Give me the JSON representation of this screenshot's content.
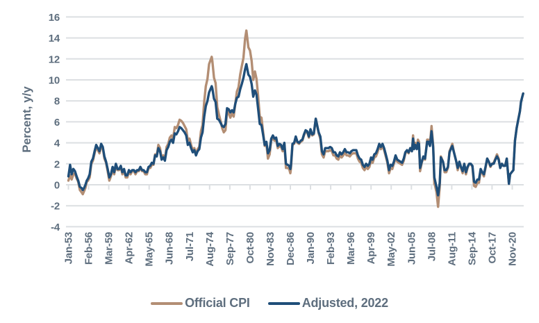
{
  "chart_data": {
    "type": "line",
    "title": "",
    "ylabel": "Percent, y/y",
    "xlabel": "",
    "ylim": [
      -4,
      16
    ],
    "y_ticks": [
      16,
      14,
      12,
      10,
      8,
      6,
      4,
      2,
      0,
      "-2",
      "-4"
    ],
    "y_tick_values": [
      16,
      14,
      12,
      10,
      8,
      6,
      4,
      2,
      0,
      -2,
      -4
    ],
    "x_tick_labels": [
      "Jan-53",
      "Feb-56",
      "Mar-59",
      "Apr-62",
      "May-65",
      "Jun-68",
      "Jul-71",
      "Aug-74",
      "Sep-77",
      "Oct-80",
      "Nov-83",
      "Dec-86",
      "Jan-90",
      "Feb-93",
      "Mar-96",
      "Apr-99",
      "May-02",
      "Jun-05",
      "Jul-08",
      "Aug-11",
      "Sep-14",
      "Oct-17",
      "Nov-20"
    ],
    "x_tick_interval_months": 37,
    "x_range_years": [
      1953.0,
      2022.5
    ],
    "grid": "horizontal-only",
    "legend_position": "bottom-center",
    "axis_text_color": "#5e6e7e",
    "grid_color": "#dcdfe2",
    "series": [
      {
        "name": "Official CPI",
        "color": "#b38e74"
      },
      {
        "name": "Adjusted, 2022",
        "color": "#1f4e79"
      }
    ],
    "columns": [
      "year",
      "official_cpi_yoy_pct",
      "adjusted_2022_yoy_pct"
    ],
    "points": [
      [
        1953,
        0.4,
        0.8
      ],
      [
        1953.25,
        0.9,
        1.9
      ],
      [
        1953.5,
        0.5,
        1
      ],
      [
        1953.75,
        1,
        1.5
      ],
      [
        1954,
        1.1,
        1.3
      ],
      [
        1954.25,
        0.6,
        0.8
      ],
      [
        1954.5,
        0.3,
        0.4
      ],
      [
        1954.75,
        -0.5,
        -0.2
      ],
      [
        1955,
        -0.7,
        -0.3
      ],
      [
        1955.2,
        -0.9,
        -0.5
      ],
      [
        1955.4,
        -0.6,
        -0.3
      ],
      [
        1955.6,
        -0.3,
        0
      ],
      [
        1955.8,
        0.3,
        0.4
      ],
      [
        1956,
        0.4,
        0.6
      ],
      [
        1956.25,
        0.7,
        1
      ],
      [
        1956.5,
        2,
        2.2
      ],
      [
        1956.75,
        2.3,
        2.5
      ],
      [
        1957,
        3,
        3.2
      ],
      [
        1957.25,
        3.6,
        3.8
      ],
      [
        1957.5,
        3.3,
        3.5
      ],
      [
        1957.75,
        3,
        3.2
      ],
      [
        1958,
        3.6,
        3.9
      ],
      [
        1958.25,
        3.5,
        3.6
      ],
      [
        1958.5,
        2.5,
        2.7
      ],
      [
        1958.75,
        2.1,
        2.2
      ],
      [
        1959,
        1.3,
        1.5
      ],
      [
        1959.25,
        0.4,
        0.7
      ],
      [
        1959.5,
        0.8,
        1
      ],
      [
        1959.75,
        1.5,
        1.7
      ],
      [
        1960,
        1,
        1.2
      ],
      [
        1960.25,
        1.8,
        2
      ],
      [
        1960.5,
        1.4,
        1.5
      ],
      [
        1960.75,
        1.4,
        1.5
      ],
      [
        1961,
        1.7,
        1.8
      ],
      [
        1961.25,
        1,
        1.2
      ],
      [
        1961.5,
        1.4,
        1.5
      ],
      [
        1961.75,
        0.7,
        0.9
      ],
      [
        1962,
        0.7,
        0.9
      ],
      [
        1962.25,
        1.3,
        1.4
      ],
      [
        1962.5,
        1,
        1.2
      ],
      [
        1962.75,
        1.3,
        1.4
      ],
      [
        1963,
        1.3,
        1.4
      ],
      [
        1963.25,
        1,
        1.2
      ],
      [
        1963.5,
        1.3,
        1.4
      ],
      [
        1963.75,
        1.3,
        1.4
      ],
      [
        1964,
        1.6,
        1.7
      ],
      [
        1964.25,
        1.3,
        1.4
      ],
      [
        1964.5,
        1.3,
        1.4
      ],
      [
        1964.75,
        1,
        1.2
      ],
      [
        1965,
        1,
        1.2
      ],
      [
        1965.25,
        1.6,
        1.7
      ],
      [
        1965.5,
        1.6,
        1.8
      ],
      [
        1965.75,
        1.9,
        2.1
      ],
      [
        1966,
        1.9,
        2
      ],
      [
        1966.25,
        2.9,
        2.8
      ],
      [
        1966.5,
        2.8,
        2.7
      ],
      [
        1966.75,
        3.8,
        3.5
      ],
      [
        1967,
        3.5,
        3.2
      ],
      [
        1967.25,
        2.5,
        2.4
      ],
      [
        1967.5,
        2.8,
        2.6
      ],
      [
        1967.75,
        2.4,
        2.3
      ],
      [
        1968,
        3.6,
        3.3
      ],
      [
        1968.25,
        3.9,
        3.6
      ],
      [
        1968.5,
        4.5,
        4.1
      ],
      [
        1968.75,
        4.7,
        4.3
      ],
      [
        1969,
        4.4,
        4
      ],
      [
        1969.25,
        5.5,
        4.9
      ],
      [
        1969.5,
        5.4,
        4.8
      ],
      [
        1969.75,
        5.7,
        5.1
      ],
      [
        1970,
        6.2,
        5.5
      ],
      [
        1970.25,
        6.1,
        5.4
      ],
      [
        1970.5,
        5.9,
        5.2
      ],
      [
        1970.75,
        5.6,
        5
      ],
      [
        1971,
        5.3,
        4.7
      ],
      [
        1971.25,
        4.2,
        3.8
      ],
      [
        1971.5,
        4.4,
        4
      ],
      [
        1971.75,
        3.8,
        3.5
      ],
      [
        1972,
        3.3,
        3.1
      ],
      [
        1972.25,
        3.5,
        3.3
      ],
      [
        1972.5,
        2.9,
        2.8
      ],
      [
        1972.75,
        3.4,
        3.2
      ],
      [
        1973,
        3.6,
        3.4
      ],
      [
        1973.25,
        5.1,
        4.5
      ],
      [
        1973.5,
        5.7,
        5
      ],
      [
        1973.75,
        7.9,
        6.5
      ],
      [
        1974,
        9.4,
        7.5
      ],
      [
        1974.25,
        10.1,
        8
      ],
      [
        1974.5,
        11.5,
        8.8
      ],
      [
        1974.9,
        12.2,
        9.4
      ],
      [
        1975,
        11.8,
        9.2
      ],
      [
        1975.25,
        10.2,
        8.2
      ],
      [
        1975.5,
        9.7,
        7.9
      ],
      [
        1975.75,
        7.4,
        6.3
      ],
      [
        1976,
        6.7,
        6.2
      ],
      [
        1976.25,
        6.1,
        5.9
      ],
      [
        1976.5,
        5.4,
        5.6
      ],
      [
        1976.75,
        5,
        5.5
      ],
      [
        1977,
        5.2,
        5.8
      ],
      [
        1977.25,
        7,
        7.3
      ],
      [
        1977.5,
        6.8,
        7.2
      ],
      [
        1977.75,
        6.4,
        6.9
      ],
      [
        1978,
        6.8,
        7.1
      ],
      [
        1978.25,
        6.5,
        6.9
      ],
      [
        1978.5,
        7.7,
        7.7
      ],
      [
        1978.75,
        8.9,
        8.3
      ],
      [
        1979,
        9.3,
        8.4
      ],
      [
        1979.25,
        10.5,
        9.1
      ],
      [
        1979.5,
        11.3,
        9.6
      ],
      [
        1979.75,
        12.1,
        10.2
      ],
      [
        1980,
        13.9,
        11
      ],
      [
        1980.2,
        14.7,
        11.5
      ],
      [
        1980.5,
        13.1,
        10.5
      ],
      [
        1980.75,
        12.8,
        10.3
      ],
      [
        1981,
        11.8,
        9.6
      ],
      [
        1981.25,
        10,
        8.4
      ],
      [
        1981.5,
        10.8,
        9
      ],
      [
        1981.75,
        10.1,
        8.6
      ],
      [
        1982,
        8.4,
        7.2
      ],
      [
        1982.25,
        6.5,
        5.8
      ],
      [
        1982.5,
        6.4,
        5.7
      ],
      [
        1982.75,
        5.1,
        4.8
      ],
      [
        1983,
        3.7,
        3.8
      ],
      [
        1983.25,
        3.9,
        4.1
      ],
      [
        1983.5,
        2.5,
        3
      ],
      [
        1983.75,
        2.9,
        3.3
      ],
      [
        1984,
        4.2,
        4.4
      ],
      [
        1984.25,
        4.5,
        4.7
      ],
      [
        1984.5,
        4.2,
        4.4
      ],
      [
        1984.75,
        4.3,
        4.5
      ],
      [
        1985,
        3.5,
        3.7
      ],
      [
        1985.25,
        3.7,
        3.9
      ],
      [
        1985.5,
        3.6,
        3.8
      ],
      [
        1985.75,
        3.2,
        3.4
      ],
      [
        1986,
        3.9,
        4
      ],
      [
        1986.25,
        1.6,
        2
      ],
      [
        1986.5,
        1.6,
        1.9
      ],
      [
        1986.75,
        1.5,
        1.8
      ],
      [
        1986.92,
        1.1,
        1.5
      ],
      [
        1987,
        1.5,
        1.8
      ],
      [
        1987.25,
        3.8,
        3.9
      ],
      [
        1987.5,
        3.9,
        4
      ],
      [
        1987.75,
        4.5,
        4.6
      ],
      [
        1988,
        4,
        4.1
      ],
      [
        1988.25,
        3.9,
        4
      ],
      [
        1988.5,
        4.1,
        4.2
      ],
      [
        1988.75,
        4.2,
        4.3
      ],
      [
        1989,
        4.7,
        4.8
      ],
      [
        1989.25,
        5.1,
        5.2
      ],
      [
        1989.5,
        5,
        5.1
      ],
      [
        1989.75,
        4.5,
        4.6
      ],
      [
        1990,
        5.2,
        5.3
      ],
      [
        1990.25,
        4.7,
        4.8
      ],
      [
        1990.5,
        4.8,
        4.9
      ],
      [
        1990.8,
        6.3,
        6.3
      ],
      [
        1991,
        5.7,
        5.7
      ],
      [
        1991.25,
        4.9,
        5
      ],
      [
        1991.5,
        4.4,
        4.6
      ],
      [
        1991.75,
        2.9,
        3.2
      ],
      [
        1992,
        2.6,
        2.9
      ],
      [
        1992.25,
        3.2,
        3.5
      ],
      [
        1992.5,
        3.2,
        3.5
      ],
      [
        1992.75,
        3.2,
        3.5
      ],
      [
        1993,
        3.3,
        3.6
      ],
      [
        1993.25,
        3.2,
        3.5
      ],
      [
        1993.5,
        2.8,
        3.1
      ],
      [
        1993.75,
        2.8,
        3.1
      ],
      [
        1994,
        2.5,
        2.8
      ],
      [
        1994.25,
        2.4,
        2.7
      ],
      [
        1994.5,
        2.8,
        3.1
      ],
      [
        1994.75,
        2.6,
        2.9
      ],
      [
        1995,
        2.8,
        3.1
      ],
      [
        1995.25,
        3.1,
        3.4
      ],
      [
        1995.5,
        2.8,
        3.1
      ],
      [
        1995.75,
        2.8,
        3.1
      ],
      [
        1996,
        2.7,
        3
      ],
      [
        1996.25,
        2.9,
        3.2
      ],
      [
        1996.5,
        3,
        3.3
      ],
      [
        1996.75,
        3,
        3.3
      ],
      [
        1997,
        3,
        3.3
      ],
      [
        1997.25,
        2.5,
        2.8
      ],
      [
        1997.5,
        2.2,
        2.5
      ],
      [
        1997.75,
        2.1,
        2.4
      ],
      [
        1998,
        1.6,
        1.9
      ],
      [
        1998.25,
        1.4,
        1.7
      ],
      [
        1998.5,
        1.7,
        2
      ],
      [
        1998.75,
        1.5,
        1.8
      ],
      [
        1999,
        1.7,
        2
      ],
      [
        1999.25,
        2.3,
        2.6
      ],
      [
        1999.5,
        2.1,
        2.4
      ],
      [
        1999.75,
        2.6,
        2.9
      ],
      [
        2000,
        2.7,
        3
      ],
      [
        2000.25,
        3.1,
        3.4
      ],
      [
        2000.5,
        3.7,
        3.9
      ],
      [
        2000.75,
        3.4,
        3.6
      ],
      [
        2001,
        3.7,
        3.9
      ],
      [
        2001.25,
        3.3,
        3.5
      ],
      [
        2001.5,
        2.7,
        2.9
      ],
      [
        2001.75,
        2.1,
        2.3
      ],
      [
        2002,
        1.1,
        1.4
      ],
      [
        2002.25,
        1.6,
        1.9
      ],
      [
        2002.5,
        1.5,
        1.8
      ],
      [
        2002.75,
        2,
        2.2
      ],
      [
        2003,
        2.6,
        2.8
      ],
      [
        2003.25,
        2.2,
        2.4
      ],
      [
        2003.5,
        2.1,
        2.3
      ],
      [
        2003.75,
        2,
        2.2
      ],
      [
        2004,
        1.9,
        2.1
      ],
      [
        2004.25,
        2.3,
        2.5
      ],
      [
        2004.5,
        3,
        3.1
      ],
      [
        2004.75,
        3.2,
        3.3
      ],
      [
        2005,
        3,
        3.1
      ],
      [
        2005.25,
        3.5,
        3.5
      ],
      [
        2005.5,
        3.2,
        3.2
      ],
      [
        2005.67,
        4.7,
        4.4
      ],
      [
        2005.83,
        3.5,
        3.4
      ],
      [
        2006,
        4,
        3.8
      ],
      [
        2006.25,
        3.5,
        3.4
      ],
      [
        2006.42,
        4.3,
        4
      ],
      [
        2006.58,
        4.1,
        3.9
      ],
      [
        2006.75,
        1.3,
        1.6
      ],
      [
        2007,
        2.1,
        2.2
      ],
      [
        2007.25,
        2.6,
        2.7
      ],
      [
        2007.5,
        2.4,
        2.5
      ],
      [
        2007.83,
        4.3,
        4.1
      ],
      [
        2008,
        4.3,
        4.1
      ],
      [
        2008.25,
        3.9,
        3.7
      ],
      [
        2008.5,
        5.6,
        5.1
      ],
      [
        2008.75,
        3.7,
        3.5
      ],
      [
        2008.92,
        0.1,
        0.7
      ],
      [
        2009,
        0,
        0.5
      ],
      [
        2009.25,
        -0.7,
        -0.2
      ],
      [
        2009.5,
        -2.1,
        -1
      ],
      [
        2009.75,
        -0.2,
        0.2
      ],
      [
        2009.92,
        2.7,
        2.6
      ],
      [
        2010,
        2.6,
        2.5
      ],
      [
        2010.25,
        2.2,
        2.2
      ],
      [
        2010.5,
        1.2,
        1.4
      ],
      [
        2010.75,
        1.2,
        1.4
      ],
      [
        2011,
        1.6,
        1.7
      ],
      [
        2011.25,
        3.2,
        3.1
      ],
      [
        2011.5,
        3.6,
        3.5
      ],
      [
        2011.67,
        3.9,
        3.7
      ],
      [
        2011.83,
        3.4,
        3.3
      ],
      [
        2012,
        2.9,
        2.9
      ],
      [
        2012.25,
        2.3,
        2.3
      ],
      [
        2012.5,
        1.4,
        1.6
      ],
      [
        2012.75,
        2.2,
        2.2
      ],
      [
        2013,
        1.6,
        1.7
      ],
      [
        2013.25,
        1.1,
        1.3
      ],
      [
        2013.5,
        2,
        2
      ],
      [
        2013.75,
        1,
        1.2
      ],
      [
        2014,
        1.6,
        1.7
      ],
      [
        2014.25,
        2,
        2
      ],
      [
        2014.5,
        2,
        2
      ],
      [
        2014.75,
        1.7,
        1.8
      ],
      [
        2015,
        -0.1,
        0.3
      ],
      [
        2015.25,
        -0.2,
        0.2
      ],
      [
        2015.5,
        0.2,
        0.5
      ],
      [
        2015.75,
        0.2,
        0.5
      ],
      [
        2016,
        1.4,
        1.5
      ],
      [
        2016.25,
        1.1,
        1.2
      ],
      [
        2016.5,
        0.8,
        1
      ],
      [
        2016.75,
        1.6,
        1.7
      ],
      [
        2017,
        2.5,
        2.5
      ],
      [
        2017.25,
        2.2,
        2.2
      ],
      [
        2017.5,
        1.7,
        1.8
      ],
      [
        2017.75,
        2,
        2
      ],
      [
        2018,
        2.1,
        2
      ],
      [
        2018.25,
        2.5,
        2.4
      ],
      [
        2018.5,
        2.9,
        2.7
      ],
      [
        2018.75,
        2.5,
        2.4
      ],
      [
        2019,
        1.6,
        1.6
      ],
      [
        2019.25,
        2,
        2
      ],
      [
        2019.5,
        1.8,
        1.8
      ],
      [
        2019.75,
        1.8,
        1.8
      ],
      [
        2020,
        2.5,
        2.5
      ],
      [
        2020.33,
        0.1,
        0.1
      ],
      [
        2020.5,
        1,
        1
      ],
      [
        2020.75,
        1.2,
        1.2
      ],
      [
        2021,
        1.4,
        1.4
      ],
      [
        2021.25,
        4.2,
        4.2
      ],
      [
        2021.5,
        5.4,
        5.4
      ],
      [
        2021.75,
        6.2,
        6.2
      ],
      [
        2022,
        7,
        7
      ],
      [
        2022.17,
        7.9,
        7.9
      ],
      [
        2022.33,
        8.3,
        8.3
      ],
      [
        2022.5,
        8.7,
        8.7
      ]
    ]
  }
}
